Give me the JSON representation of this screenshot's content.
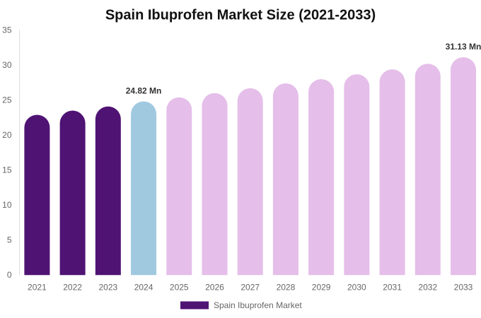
{
  "title": "Spain Ibuprofen Market Size (2021-2033)",
  "legend": {
    "label": "Spain Ibuprofen Market",
    "swatch_color": "#4F1374"
  },
  "axis": {
    "line_color": "#DDDDDD",
    "label_color": "#666666"
  },
  "colors": {
    "historical": "#4F1374",
    "current_year": "#A0C9E0",
    "forecast": "#E5BEE9",
    "title_text": "#111111",
    "data_label_text": "#333333"
  },
  "chart_data": {
    "type": "bar",
    "title": "Spain Ibuprofen Market Size (2021-2033)",
    "xlabel": "",
    "ylabel": "",
    "unit": "Mn",
    "categories": [
      "2021",
      "2022",
      "2023",
      "2024",
      "2025",
      "2026",
      "2027",
      "2028",
      "2029",
      "2030",
      "2031",
      "2032",
      "2033"
    ],
    "series": [
      {
        "name": "Spain Ibuprofen Market",
        "values": [
          22.9,
          23.5,
          24.1,
          24.82,
          25.4,
          26.0,
          26.7,
          27.4,
          28.0,
          28.7,
          29.4,
          30.2,
          31.13
        ]
      }
    ],
    "bar_roles": [
      "historical",
      "historical",
      "historical",
      "current_year",
      "forecast",
      "forecast",
      "forecast",
      "forecast",
      "forecast",
      "forecast",
      "forecast",
      "forecast",
      "forecast"
    ],
    "data_labels": [
      {
        "index": 3,
        "text": "24.82 Mn"
      },
      {
        "index": 12,
        "text": "31.13 Mn"
      }
    ],
    "ylim": [
      0,
      35
    ],
    "yticks": [
      0,
      5,
      10,
      15,
      20,
      25,
      30,
      35
    ],
    "grid": false,
    "legend_position": "bottom"
  }
}
